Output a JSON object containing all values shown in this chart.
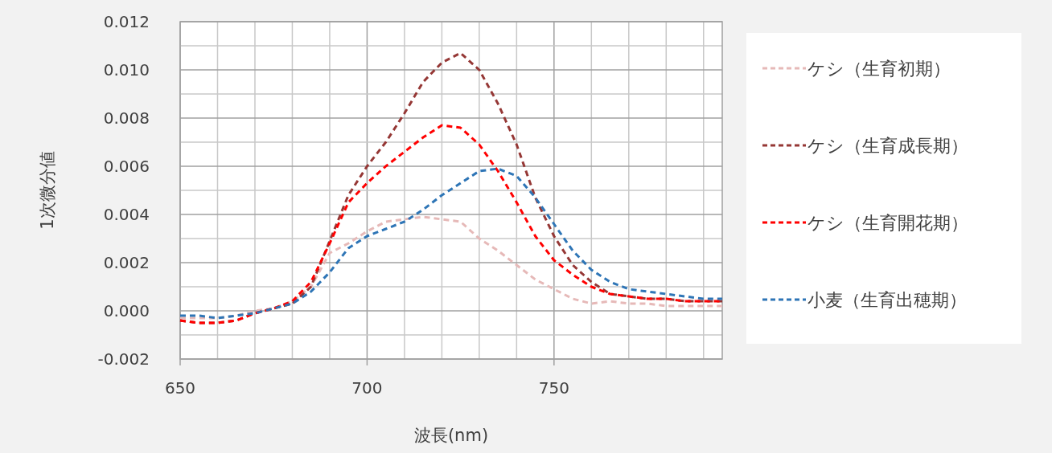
{
  "chart_data": {
    "type": "line",
    "xlabel": "波長(nm)",
    "ylabel": "1次微分値",
    "x": [
      650,
      655,
      660,
      665,
      670,
      675,
      680,
      685,
      690,
      695,
      700,
      705,
      710,
      715,
      720,
      725,
      730,
      735,
      740,
      745,
      750,
      755,
      760,
      765,
      770,
      775,
      780,
      785,
      790,
      795
    ],
    "xlim": [
      650,
      795
    ],
    "xticks": [
      650,
      {
        "value": 660,
        "label": null
      },
      {
        "value": 670,
        "label": null
      },
      {
        "value": 680,
        "label": null
      },
      {
        "value": 690,
        "label": null
      },
      700,
      {
        "value": 710,
        "label": null
      },
      {
        "value": 720,
        "label": null
      },
      {
        "value": 730,
        "label": null
      },
      {
        "value": 740,
        "label": null
      },
      750,
      {
        "value": 760,
        "label": null
      },
      {
        "value": 770,
        "label": null
      },
      {
        "value": 780,
        "label": null
      },
      {
        "value": 790,
        "label": null
      }
    ],
    "ylim": [
      -0.002,
      0.012
    ],
    "yticks": [
      {
        "value": -0.002,
        "label": "-0.002"
      },
      {
        "value": -0.001,
        "label": null
      },
      {
        "value": 0,
        "label": "0.000"
      },
      {
        "value": 0.001,
        "label": null
      },
      {
        "value": 0.002,
        "label": "0.002"
      },
      {
        "value": 0.003,
        "label": null
      },
      {
        "value": 0.004,
        "label": "0.004"
      },
      {
        "value": 0.005,
        "label": null
      },
      {
        "value": 0.006,
        "label": "0.006"
      },
      {
        "value": 0.007,
        "label": null
      },
      {
        "value": 0.008,
        "label": "0.008"
      },
      {
        "value": 0.009,
        "label": null
      },
      {
        "value": 0.01,
        "label": "0.010"
      },
      {
        "value": 0.011,
        "label": null
      },
      {
        "value": 0.012,
        "label": "0.012"
      }
    ],
    "grid": true,
    "legend": "right",
    "marker": "none",
    "line_style": "dashed",
    "series": [
      {
        "name": "ケシ（生育初期）",
        "color": "#e6b9b8",
        "values": [
          -0.0003,
          -0.0003,
          -0.0003,
          -0.0002,
          0.0,
          0.0001,
          0.0004,
          0.001,
          0.0024,
          0.0028,
          0.0033,
          0.0037,
          0.0038,
          0.0039,
          0.0038,
          0.0037,
          0.003,
          0.0025,
          0.0019,
          0.0013,
          0.0009,
          0.0005,
          0.0003,
          0.0004,
          0.0003,
          0.0003,
          0.0002,
          0.0002,
          0.0002,
          0.0002
        ]
      },
      {
        "name": "ケシ（生育成長期）",
        "color": "#953735",
        "values": [
          -0.0004,
          -0.0005,
          -0.0005,
          -0.0004,
          -0.0001,
          0.0001,
          0.0003,
          0.001,
          0.0029,
          0.0048,
          0.006,
          0.007,
          0.0082,
          0.0095,
          0.0103,
          0.0107,
          0.01,
          0.0086,
          0.0069,
          0.0047,
          0.0031,
          0.0019,
          0.0012,
          0.0007,
          0.0006,
          0.0005,
          0.0005,
          0.0004,
          0.0004,
          0.0004
        ]
      },
      {
        "name": "ケシ（生育開花期）",
        "color": "#ff0000",
        "values": [
          -0.0004,
          -0.0005,
          -0.0005,
          -0.0004,
          -0.0001,
          0.0001,
          0.0004,
          0.0012,
          0.0028,
          0.0045,
          0.0053,
          0.006,
          0.0066,
          0.0072,
          0.0077,
          0.0076,
          0.0069,
          0.0058,
          0.0045,
          0.0031,
          0.0021,
          0.0015,
          0.001,
          0.0007,
          0.0006,
          0.0005,
          0.0005,
          0.0004,
          0.0004,
          0.0004
        ]
      },
      {
        "name": "小麦（生育出穂期）",
        "color": "#2e75b6",
        "values": [
          -0.0002,
          -0.0002,
          -0.0003,
          -0.0002,
          -0.0001,
          0.0001,
          0.0003,
          0.0008,
          0.0016,
          0.0026,
          0.0031,
          0.0034,
          0.0037,
          0.0042,
          0.0048,
          0.0053,
          0.0058,
          0.0059,
          0.0056,
          0.0047,
          0.0036,
          0.0025,
          0.0017,
          0.0012,
          0.0009,
          0.0008,
          0.0007,
          0.0006,
          0.0005,
          0.0005
        ]
      }
    ]
  }
}
